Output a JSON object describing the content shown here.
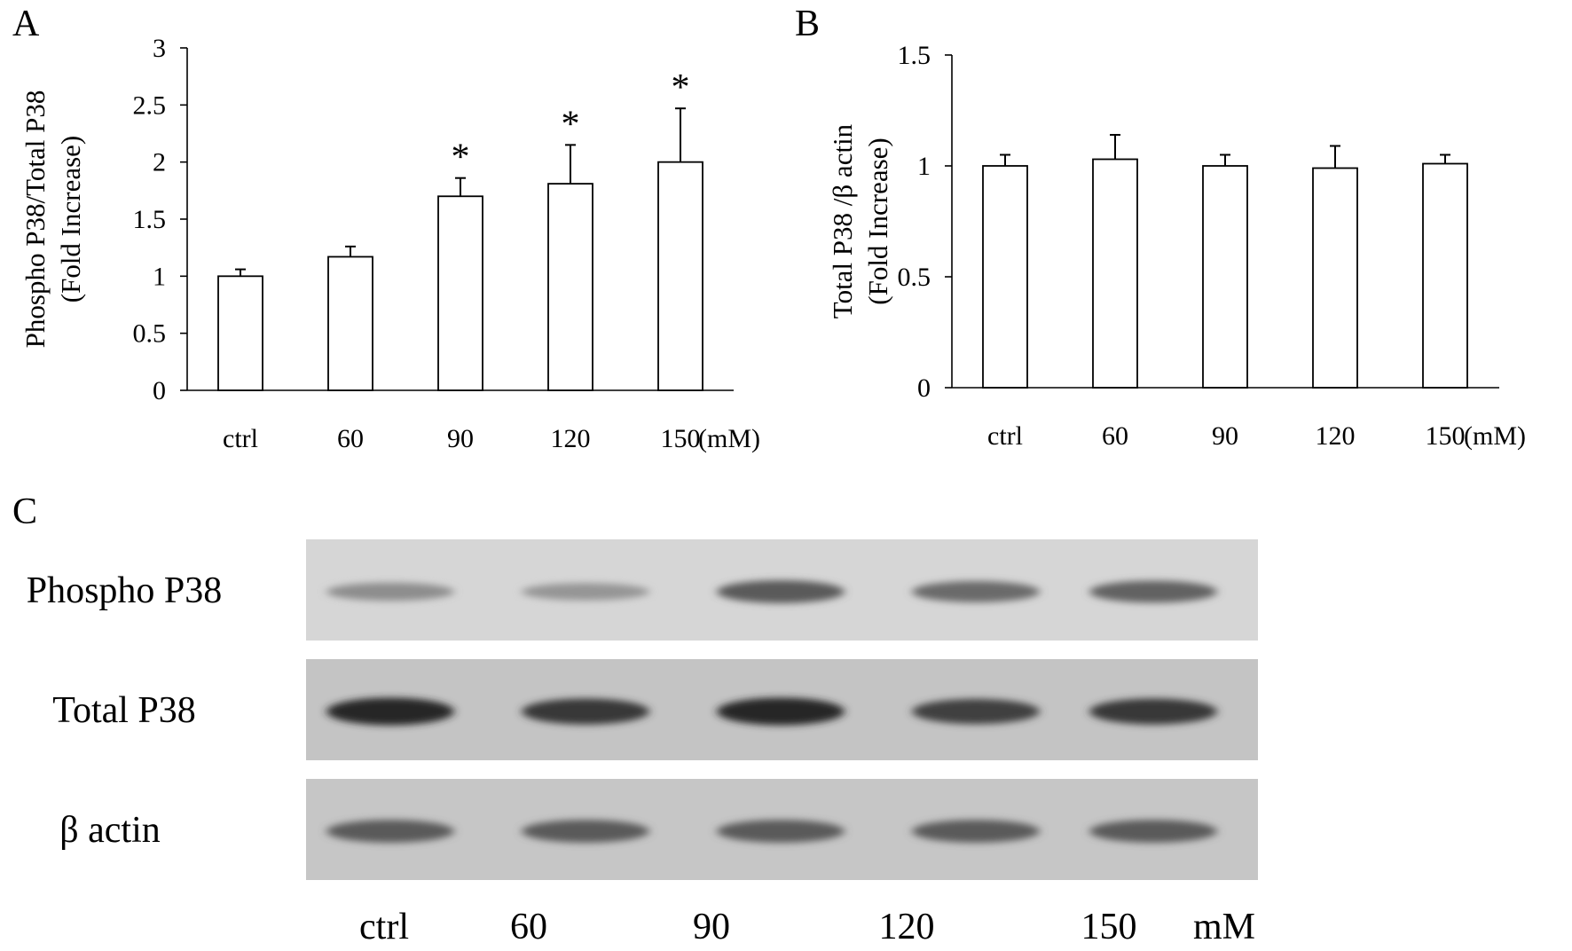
{
  "panel_labels": {
    "a": "A",
    "b": "B",
    "c": "C"
  },
  "chart_data": [
    {
      "panel": "A",
      "type": "bar",
      "categories": [
        "ctrl",
        "60",
        "90",
        "120",
        "150"
      ],
      "unit_label": "(mM)",
      "values": [
        1.0,
        1.17,
        1.7,
        1.81,
        2.0
      ],
      "error": [
        0.06,
        0.09,
        0.16,
        0.34,
        0.47
      ],
      "significance": [
        "",
        "",
        "*",
        "*",
        "*"
      ],
      "ylabel_line1": "Phospho P38/Total P38",
      "ylabel_line2": "(Fold Increase)",
      "ylim": [
        0,
        3
      ],
      "yticks": [
        0,
        0.5,
        1,
        1.5,
        2,
        2.5,
        3
      ],
      "ytick_labels": [
        "0",
        "0.5",
        "1",
        "1.5",
        "2",
        "2.5",
        "3"
      ],
      "bar_fill": "#ffffff",
      "grid": false
    },
    {
      "panel": "B",
      "type": "bar",
      "categories": [
        "ctrl",
        "60",
        "90",
        "120",
        "150"
      ],
      "unit_label": "(mM)",
      "values": [
        1.0,
        1.03,
        1.0,
        0.99,
        1.01
      ],
      "error": [
        0.05,
        0.11,
        0.05,
        0.1,
        0.04
      ],
      "significance": [
        "",
        "",
        "",
        "",
        ""
      ],
      "ylabel_line1": "Total P38 /β actin",
      "ylabel_line2": "(Fold Increase)",
      "ylim": [
        0,
        1.5
      ],
      "yticks": [
        0,
        0.5,
        1,
        1.5
      ],
      "ytick_labels": [
        "0",
        "0.5",
        "1",
        "1.5"
      ],
      "bar_fill": "#ffffff",
      "grid": false
    }
  ],
  "blot": {
    "rows": [
      {
        "label": "Phospho P38",
        "intensity": [
          0.35,
          0.3,
          0.65,
          0.55,
          0.6
        ],
        "background": "#d6d6d6"
      },
      {
        "label": "Total P38",
        "intensity": [
          0.95,
          0.85,
          0.95,
          0.8,
          0.85
        ],
        "background": "#c4c4c4"
      },
      {
        "label": "β actin",
        "intensity": [
          0.65,
          0.65,
          0.65,
          0.65,
          0.65
        ],
        "background": "#c6c6c6"
      }
    ],
    "lanes": [
      "ctrl",
      "60",
      "90",
      "120",
      "150"
    ],
    "unit_label": "mM"
  }
}
